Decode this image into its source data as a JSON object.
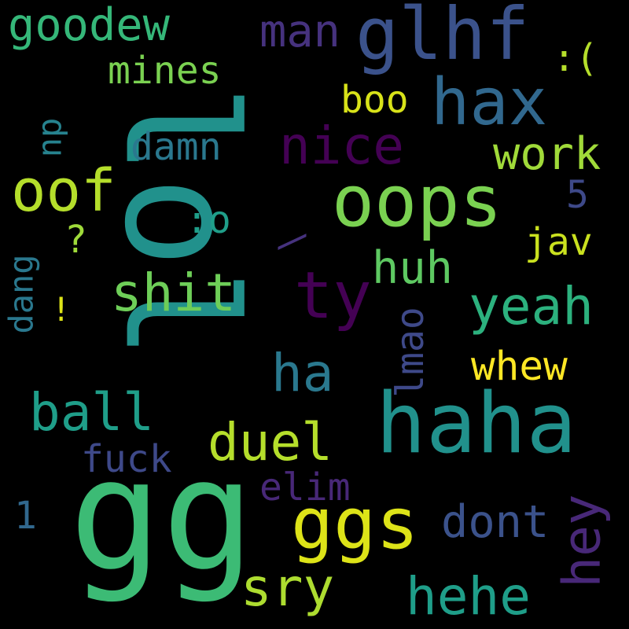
{
  "words": [
    {
      "text": "lol",
      "color": "#21918c",
      "vertical": true
    },
    {
      "text": "gg",
      "color": "#3cbb75"
    },
    {
      "text": "haha",
      "color": "#21918c"
    },
    {
      "text": "oops",
      "color": "#7ad151"
    },
    {
      "text": "glhf",
      "color": "#3b528b"
    },
    {
      "text": "ggs",
      "color": "#dde318"
    },
    {
      "text": "hax",
      "color": "#31688e"
    },
    {
      "text": "hey",
      "color": "#482878",
      "vertical": true
    },
    {
      "text": "ty",
      "color": "#440154"
    },
    {
      "text": "oof",
      "color": "#b5de2b"
    },
    {
      "text": "yeah",
      "color": "#2cb17e"
    },
    {
      "text": "hehe",
      "color": "#1f9e89"
    },
    {
      "text": "shit",
      "color": "#6ece58"
    },
    {
      "text": "ball",
      "color": "#1f9e89"
    },
    {
      "text": "nice",
      "color": "#440154"
    },
    {
      "text": "goodew",
      "color": "#35b779"
    },
    {
      "text": "ha",
      "color": "#2a788e"
    },
    {
      "text": "duel",
      "color": "#b5de2b"
    },
    {
      "text": "sry",
      "color": "#addc30"
    },
    {
      "text": "dont",
      "color": "#3b528b"
    },
    {
      "text": "huh",
      "color": "#5ec962"
    },
    {
      "text": "work",
      "color": "#a0da39"
    },
    {
      "text": "whew",
      "color": "#fde725"
    },
    {
      "text": "man",
      "color": "#46327e"
    },
    {
      "text": "mines",
      "color": "#7ad151"
    },
    {
      "text": "damn",
      "color": "#2a788e"
    },
    {
      "text": "boo",
      "color": "#d8e219"
    },
    {
      "text": "fuck",
      "color": "#3e4989"
    },
    {
      "text": "elim",
      "color": "#482878"
    },
    {
      "text": "lmao",
      "color": "#3e4989",
      "vertical": true
    },
    {
      "text": "jav",
      "color": "#cae11f"
    },
    {
      "text": ":(",
      "color": "#b5de2b"
    },
    {
      "text": ":o",
      "color": "#1f9e89"
    },
    {
      "text": "np",
      "color": "#26828e",
      "vertical": true
    },
    {
      "text": "dang",
      "color": "#2a788e",
      "vertical": true
    },
    {
      "text": "?",
      "color": "#9fda3a"
    },
    {
      "text": "!",
      "color": "#dde318"
    },
    {
      "text": "5",
      "color": "#3e4989"
    },
    {
      "text": "1",
      "color": "#31688e"
    },
    {
      "text": "\\",
      "color": "#46327e"
    }
  ]
}
